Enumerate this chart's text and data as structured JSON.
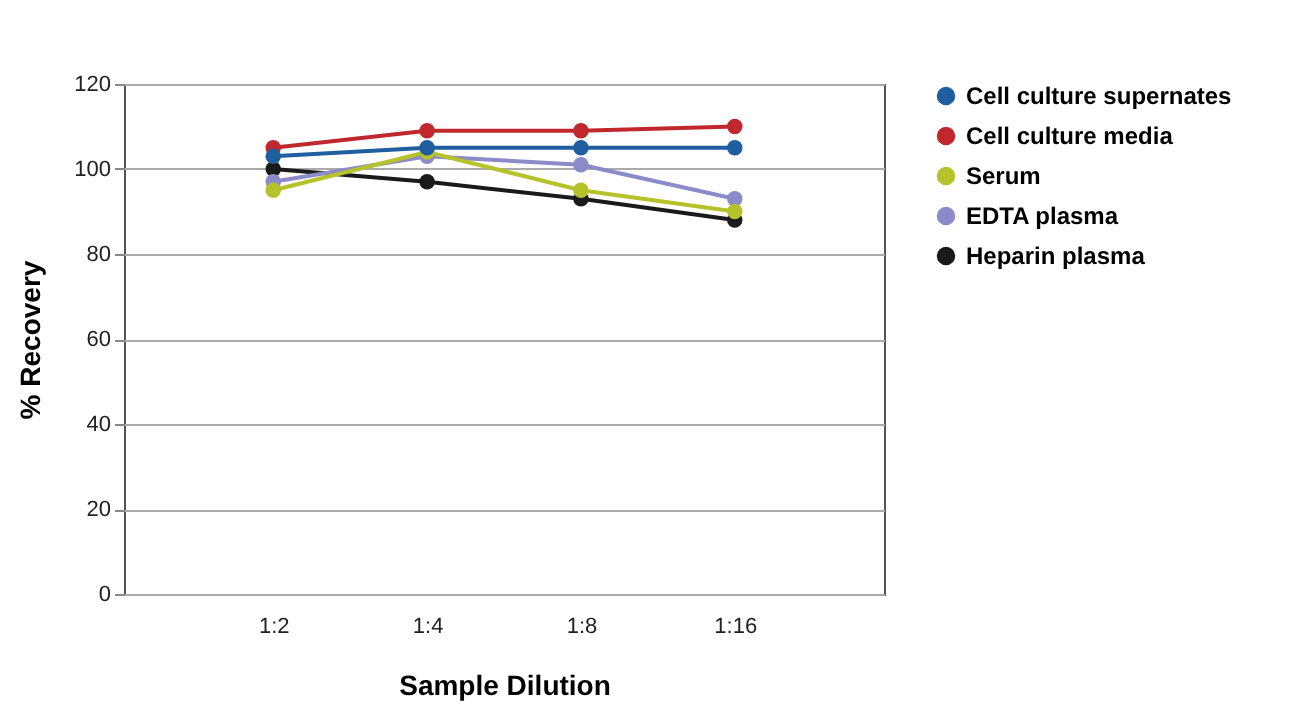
{
  "chart_data": {
    "type": "line",
    "xlabel": "Sample Dilution",
    "ylabel": "% Recovery",
    "categories": [
      "1:2",
      "1:4",
      "1:8",
      "1:16"
    ],
    "series": [
      {
        "name": "Cell culture supernates",
        "color": "#1f5fa0",
        "values": [
          103,
          105,
          105,
          105
        ]
      },
      {
        "name": "Cell culture media",
        "color": "#c0282d",
        "values": [
          105,
          109,
          109,
          110
        ]
      },
      {
        "name": "Serum",
        "color": "#b5c22a",
        "values": [
          95,
          104,
          95,
          90
        ]
      },
      {
        "name": "EDTA plasma",
        "color": "#8a8bc8",
        "values": [
          97,
          103,
          101,
          93
        ]
      },
      {
        "name": "Heparin plasma",
        "color": "#1a1a1a",
        "values": [
          100,
          97,
          93,
          88
        ]
      }
    ],
    "ylim": [
      0,
      120
    ],
    "yticks": [
      0,
      20,
      40,
      60,
      80,
      100,
      120
    ],
    "grid": "y",
    "legend": "right",
    "marker": "circle",
    "line_style": "solid"
  }
}
